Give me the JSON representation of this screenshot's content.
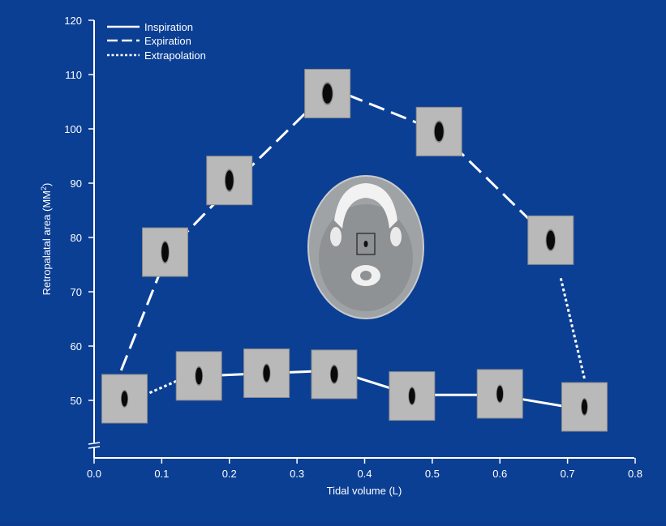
{
  "colors": {
    "background": "#0b3f94",
    "axis": "#ffffff",
    "line": "#ffffff",
    "thumb_bg": "#b9b9b9",
    "thumb_border": "#8a8a8a",
    "airway": "#0a0a0a",
    "ct_body": "#9fa3a6",
    "ct_bone": "#f2f2f2"
  },
  "chart_data": {
    "type": "line",
    "xlabel": "Tidal volume (L)",
    "ylabel": "Retropalatal area (MM",
    "ylabel_sup": "2",
    "ylabel_close": ")",
    "xlim": [
      0.0,
      0.8
    ],
    "ylim": [
      45,
      120
    ],
    "y_axis_break": true,
    "x_ticks": [
      "0.0",
      "0.1",
      "0.2",
      "0.3",
      "0.4",
      "0.5",
      "0.6",
      "0.7",
      "0.8"
    ],
    "y_ticks": [
      "50",
      "60",
      "70",
      "80",
      "90",
      "100",
      "110",
      "120"
    ],
    "legend_position": "top-left",
    "legend": [
      {
        "label": "Inspiration",
        "style": "solid"
      },
      {
        "label": "Expiration",
        "style": "dashed"
      },
      {
        "label": "Extrapolation",
        "style": "dotted"
      }
    ],
    "series": [
      {
        "name": "Inspiration",
        "style": "solid",
        "points": [
          [
            0.16,
            54.5
          ],
          [
            0.255,
            55.0
          ],
          [
            0.355,
            55.5
          ],
          [
            0.47,
            51.0
          ],
          [
            0.595,
            51.0
          ],
          [
            0.715,
            48.5
          ]
        ]
      },
      {
        "name": "Expiration",
        "style": "dashed",
        "points": [
          [
            0.04,
            55.5
          ],
          [
            0.11,
            77.5
          ],
          [
            0.215,
            91.0
          ],
          [
            0.35,
            107.5
          ],
          [
            0.51,
            99.5
          ],
          [
            0.675,
            79.5
          ]
        ]
      },
      {
        "name": "Extrapolation",
        "style": "dotted",
        "points": [
          [
            0.075,
            51.0
          ],
          [
            0.13,
            54.0
          ]
        ]
      },
      {
        "name": "Extrapolation",
        "style": "dotted",
        "points": [
          [
            0.69,
            72.5
          ],
          [
            0.725,
            54.0
          ]
        ]
      }
    ],
    "airway_images": [
      {
        "x": 0.045,
        "y": 50.3,
        "ax": 0.7,
        "ay": 1.0
      },
      {
        "x": 0.105,
        "y": 77.3,
        "ax": 0.8,
        "ay": 1.3
      },
      {
        "x": 0.2,
        "y": 90.5,
        "ax": 0.9,
        "ay": 1.3
      },
      {
        "x": 0.345,
        "y": 106.5,
        "ax": 1.1,
        "ay": 1.3
      },
      {
        "x": 0.51,
        "y": 99.5,
        "ax": 1.0,
        "ay": 1.25
      },
      {
        "x": 0.675,
        "y": 79.5,
        "ax": 0.95,
        "ay": 1.25
      },
      {
        "x": 0.155,
        "y": 54.5,
        "ax": 0.75,
        "ay": 1.1
      },
      {
        "x": 0.255,
        "y": 55.0,
        "ax": 0.75,
        "ay": 1.1
      },
      {
        "x": 0.355,
        "y": 54.8,
        "ax": 0.8,
        "ay": 1.1
      },
      {
        "x": 0.47,
        "y": 50.8,
        "ax": 0.7,
        "ay": 1.05
      },
      {
        "x": 0.6,
        "y": 51.2,
        "ax": 0.7,
        "ay": 1.05
      },
      {
        "x": 0.725,
        "y": 48.8,
        "ax": 0.65,
        "ay": 1.0
      }
    ]
  }
}
